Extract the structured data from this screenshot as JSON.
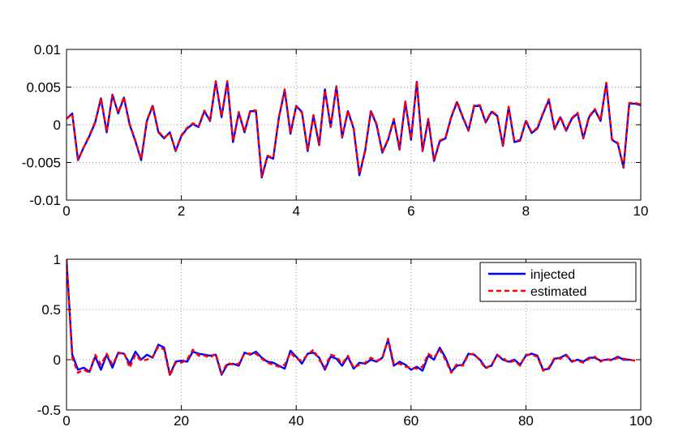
{
  "chart_data": [
    {
      "type": "line",
      "title": "",
      "xlabel": "",
      "ylabel": "",
      "xlim": [
        0,
        10
      ],
      "ylim": [
        -0.01,
        0.01
      ],
      "grid": true,
      "x_ticks": [
        0,
        2,
        4,
        6,
        8,
        10
      ],
      "x_tick_labels": [
        "0",
        "2",
        "4",
        "6",
        "8",
        "10"
      ],
      "y_ticks": [
        0.01,
        0.005,
        0,
        -0.005,
        -0.01
      ],
      "y_tick_labels": [
        "0.01",
        "0.005",
        "0",
        "-0.005",
        "-0.01"
      ],
      "x": [
        0.0,
        0.1,
        0.2,
        0.3,
        0.4,
        0.5,
        0.6,
        0.7,
        0.8,
        0.9,
        1.0,
        1.1,
        1.2,
        1.3,
        1.4,
        1.5,
        1.6,
        1.7,
        1.8,
        1.9,
        2.0,
        2.1,
        2.2,
        2.3,
        2.4,
        2.5,
        2.6,
        2.7,
        2.8,
        2.9,
        3.0,
        3.1,
        3.2,
        3.3,
        3.4,
        3.5,
        3.6,
        3.7,
        3.8,
        3.9,
        4.0,
        4.1,
        4.2,
        4.3,
        4.4,
        4.5,
        4.6,
        4.7,
        4.8,
        4.9,
        5.0,
        5.1,
        5.2,
        5.3,
        5.4,
        5.5,
        5.6,
        5.7,
        5.8,
        5.9,
        6.0,
        6.1,
        6.2,
        6.3,
        6.4,
        6.5,
        6.6,
        6.7,
        6.8,
        6.9,
        7.0,
        7.1,
        7.2,
        7.3,
        7.4,
        7.5,
        7.6,
        7.7,
        7.8,
        7.9,
        8.0,
        8.1,
        8.2,
        8.3,
        8.4,
        8.5,
        8.6,
        8.7,
        8.8,
        8.9,
        9.0,
        9.1,
        9.2,
        9.3,
        9.4,
        9.5,
        9.6,
        9.7,
        9.8,
        9.9,
        10.0
      ],
      "series": [
        {
          "name": "injected",
          "color": "#0000ff",
          "style": "solid",
          "values": [
            0.0008,
            0.0015,
            -0.0047,
            -0.003,
            -0.0015,
            0.0003,
            0.0035,
            -0.001,
            0.004,
            0.0015,
            0.0036,
            0.0,
            -0.0022,
            -0.0047,
            0.0005,
            0.0025,
            -0.001,
            -0.0018,
            -0.001,
            -0.0035,
            -0.0015,
            -0.0005,
            0.0001,
            -0.0003,
            0.0018,
            0.0005,
            0.0057,
            0.001,
            0.0057,
            -0.0023,
            0.0016,
            -0.001,
            0.0018,
            0.0018,
            -0.007,
            -0.0042,
            -0.0045,
            0.001,
            0.0046,
            -0.0012,
            0.0025,
            0.0017,
            -0.0035,
            0.0012,
            -0.0027,
            0.0047,
            -0.0003,
            0.0051,
            -0.0017,
            0.0018,
            -0.0005,
            -0.0067,
            -0.0035,
            0.0018,
            0.0,
            -0.0037,
            -0.002,
            0.0007,
            -0.0033,
            0.003,
            -0.002,
            0.0057,
            -0.0035,
            0.0007,
            -0.0048,
            -0.0022,
            -0.0018,
            0.001,
            0.003,
            0.001,
            -0.0008,
            0.0025,
            0.0025,
            0.0003,
            0.0017,
            0.0012,
            -0.0028,
            0.0023,
            -0.0023,
            -0.0021,
            0.0005,
            -0.0011,
            -0.0005,
            0.0015,
            0.0033,
            -0.0006,
            0.001,
            -0.0008,
            0.0008,
            0.0015,
            -0.0018,
            0.001,
            0.002,
            0.0005,
            0.0055,
            -0.002,
            -0.0025,
            -0.0057,
            0.0028,
            0.0028,
            0.0026
          ]
        },
        {
          "name": "estimated",
          "color": "#ff0000",
          "style": "dashed",
          "values": [
            0.0008,
            0.0014,
            -0.0046,
            -0.003,
            -0.0014,
            0.0004,
            0.0036,
            -0.0009,
            0.0039,
            0.0016,
            0.0037,
            0.0001,
            -0.0021,
            -0.0046,
            0.0006,
            0.0026,
            -0.0009,
            -0.0017,
            -0.0011,
            -0.0034,
            -0.0014,
            -0.0004,
            0.0002,
            -0.0002,
            0.0019,
            0.0006,
            0.0058,
            0.0011,
            0.0058,
            -0.0022,
            0.0017,
            -0.0009,
            0.0019,
            0.0019,
            -0.0068,
            -0.0041,
            -0.0044,
            0.0011,
            0.0047,
            -0.0011,
            0.0024,
            0.0016,
            -0.0034,
            0.0013,
            -0.0026,
            0.0046,
            -0.0002,
            0.005,
            -0.0016,
            0.0019,
            -0.0004,
            -0.0065,
            -0.0034,
            0.0019,
            0.0001,
            -0.0036,
            -0.0019,
            0.0008,
            -0.0032,
            0.0031,
            -0.0019,
            0.0058,
            -0.0034,
            0.0008,
            -0.0047,
            -0.0021,
            -0.0017,
            0.0011,
            0.0031,
            0.0011,
            -0.0007,
            0.0026,
            0.0026,
            0.0004,
            0.0018,
            0.0013,
            -0.0027,
            0.0024,
            -0.0022,
            -0.002,
            0.0006,
            -0.001,
            -0.0004,
            0.0016,
            0.0034,
            -0.0005,
            0.0011,
            -0.0007,
            0.0009,
            0.0016,
            -0.0017,
            0.0011,
            0.0021,
            0.0006,
            0.0056,
            -0.0019,
            -0.0024,
            -0.0056,
            0.0029,
            0.0029,
            0.0027
          ]
        }
      ]
    },
    {
      "type": "line",
      "title": "",
      "xlabel": "",
      "ylabel": "",
      "xlim": [
        0,
        100
      ],
      "ylim": [
        -0.5,
        1
      ],
      "grid": true,
      "legend": "top-right",
      "x_ticks": [
        0,
        20,
        40,
        60,
        80,
        100
      ],
      "x_tick_labels": [
        "0",
        "20",
        "40",
        "60",
        "80",
        "100"
      ],
      "y_ticks": [
        1,
        0.5,
        0,
        -0.5
      ],
      "y_tick_labels": [
        "1",
        "0.5",
        "0",
        "-0.5"
      ],
      "x_start": 0,
      "x_step": 1,
      "series": [
        {
          "name": "injected",
          "color": "#0000ff",
          "style": "solid",
          "values": [
            1.0,
            0.05,
            -0.1,
            -0.08,
            -0.12,
            0.03,
            -0.1,
            0.05,
            -0.08,
            0.07,
            0.06,
            -0.04,
            0.08,
            0.0,
            0.05,
            0.02,
            0.15,
            0.12,
            -0.15,
            -0.02,
            -0.01,
            -0.02,
            0.08,
            0.06,
            0.05,
            0.04,
            0.05,
            -0.15,
            -0.05,
            -0.04,
            -0.06,
            0.07,
            0.05,
            0.08,
            0.02,
            -0.02,
            -0.03,
            -0.06,
            -0.09,
            0.09,
            0.03,
            -0.04,
            0.06,
            0.07,
            0.02,
            -0.1,
            0.03,
            0.01,
            -0.06,
            0.03,
            -0.09,
            -0.03,
            -0.04,
            0.0,
            -0.02,
            0.02,
            0.2,
            -0.06,
            -0.02,
            -0.05,
            -0.1,
            -0.07,
            -0.11,
            0.04,
            0.0,
            0.12,
            0.02,
            -0.12,
            -0.06,
            -0.05,
            0.06,
            0.05,
            0.0,
            -0.08,
            -0.06,
            0.05,
            0.0,
            -0.02,
            0.0,
            -0.05,
            0.04,
            0.06,
            0.04,
            -0.1,
            -0.09,
            0.01,
            0.02,
            0.05,
            -0.02,
            0.0,
            -0.02,
            0.02,
            0.02,
            -0.01,
            0.0,
            0.0,
            0.03,
            0.0,
            0.0,
            -0.01
          ]
        },
        {
          "name": "estimated",
          "color": "#ff0000",
          "style": "dashed",
          "values": [
            1.0,
            0.02,
            -0.13,
            -0.1,
            -0.13,
            0.05,
            -0.05,
            0.06,
            -0.05,
            0.06,
            0.07,
            -0.08,
            0.05,
            -0.01,
            0.0,
            0.03,
            0.13,
            0.1,
            -0.16,
            -0.03,
            -0.03,
            0.0,
            0.1,
            0.04,
            0.04,
            0.02,
            0.06,
            -0.14,
            -0.03,
            -0.05,
            -0.04,
            0.06,
            0.06,
            0.06,
            0.01,
            -0.03,
            -0.05,
            -0.07,
            -0.05,
            0.07,
            0.01,
            -0.01,
            0.05,
            0.1,
            0.0,
            -0.08,
            0.05,
            0.03,
            -0.04,
            0.04,
            -0.08,
            -0.05,
            -0.03,
            0.02,
            -0.01,
            0.01,
            0.21,
            -0.04,
            -0.04,
            -0.07,
            -0.08,
            -0.09,
            -0.07,
            0.06,
            0.02,
            0.1,
            0.0,
            -0.13,
            -0.04,
            -0.06,
            0.05,
            0.06,
            -0.01,
            -0.09,
            -0.05,
            0.04,
            0.02,
            -0.03,
            -0.01,
            -0.06,
            0.05,
            0.05,
            0.03,
            -0.11,
            -0.08,
            0.02,
            0.01,
            0.04,
            -0.01,
            -0.01,
            -0.03,
            0.01,
            0.03,
            -0.02,
            0.01,
            -0.01,
            0.02,
            0.01,
            0.0,
            -0.01
          ]
        }
      ]
    }
  ]
}
